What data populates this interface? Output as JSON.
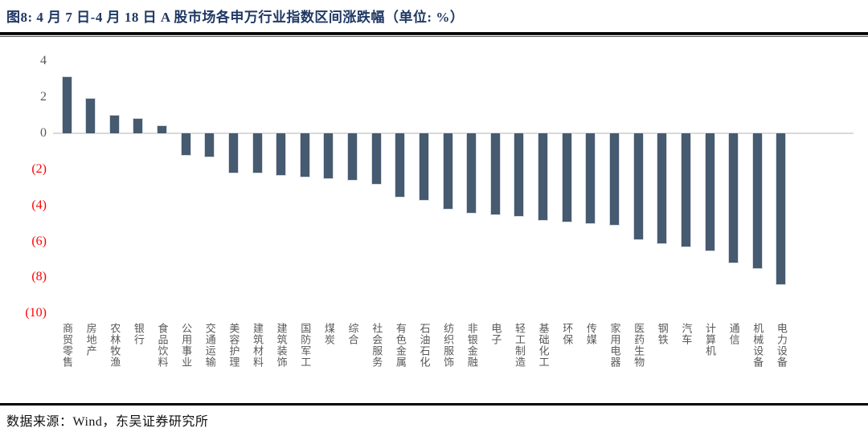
{
  "page": {
    "title": "图8:  4 月 7 日-4 月 18 日 A 股市场各申万行业指数区间涨跌幅（单位:  %）",
    "source": "数据来源：Wind，东吴证券研究所"
  },
  "colors": {
    "bar": "#465A70",
    "title_navy": "#1F3864",
    "negative_tick_red": "#FF0000",
    "axis_text_gray": "#595959",
    "zero_line_gray": "#D9D9D9",
    "rule_black": "#000000"
  },
  "chart_data": {
    "type": "bar",
    "title": "4月7日-4月18日 A股市场各申万行业指数区间涨跌幅",
    "unit": "%",
    "legend_position": "none",
    "grid": "zero-line-only",
    "ylim": [
      -10,
      4
    ],
    "ytick_labels": [
      "4",
      "2",
      "0",
      "(2)",
      "(4)",
      "(6)",
      "(8)",
      "(10)"
    ],
    "ytick_values": [
      4,
      2,
      0,
      -2,
      -4,
      -6,
      -8,
      -10
    ],
    "categories": [
      "商贸零售",
      "房地产",
      "农林牧渔",
      "银行",
      "食品饮料",
      "公用事业",
      "交通运输",
      "美容护理",
      "建筑材料",
      "建筑装饰",
      "国防军工",
      "煤炭",
      "综合",
      "社会服务",
      "有色金属",
      "石油石化",
      "纺织服饰",
      "非银金融",
      "电子",
      "轻工制造",
      "基础化工",
      "环保",
      "传媒",
      "家用电器",
      "医药生物",
      "钢铁",
      "汽车",
      "计算机",
      "通信",
      "机械设备",
      "电力设备"
    ],
    "values": [
      3.1,
      1.9,
      1.0,
      0.8,
      0.4,
      -1.2,
      -1.3,
      -2.2,
      -2.2,
      -2.3,
      -2.4,
      -2.5,
      -2.6,
      -2.8,
      -3.5,
      -3.7,
      -4.2,
      -4.4,
      -4.5,
      -4.6,
      -4.8,
      -4.9,
      -5.0,
      -5.1,
      -5.9,
      -6.1,
      -6.3,
      -6.5,
      -7.2,
      -7.5,
      -8.4
    ]
  }
}
